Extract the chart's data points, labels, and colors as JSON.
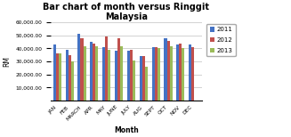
{
  "title": "Bar chart of month versus Ringgit\nMalaysia",
  "xlabel": "Month",
  "ylabel": "RM",
  "months": [
    "JAN",
    "FEB",
    "MARCH",
    "APR",
    "MAY",
    "JUNE",
    "JULY",
    "AUG",
    "SEPT",
    "OCT",
    "NOV",
    "DEC"
  ],
  "series": {
    "2011": [
      43000,
      39000,
      51000,
      45000,
      41000,
      38000,
      38000,
      34000,
      41000,
      48000,
      43000,
      43000
    ],
    "2012": [
      36000,
      35000,
      48000,
      44000,
      49000,
      48000,
      39000,
      34000,
      41000,
      46000,
      44000,
      41000
    ],
    "2013": [
      36000,
      30000,
      42000,
      42000,
      39000,
      42000,
      31000,
      26000,
      40000,
      42000,
      40000,
      0
    ]
  },
  "colors": {
    "2011": "#4472C4",
    "2012": "#C0504D",
    "2013": "#9BBB59"
  },
  "ylim": [
    0,
    60000
  ],
  "yticks": [
    10000,
    20000,
    30000,
    40000,
    50000,
    60000
  ],
  "legend_labels": [
    "2011",
    "2012",
    "2013"
  ],
  "background_color": "#FFFFFF",
  "grid_color": "#C0C0C0",
  "bar_width": 0.22,
  "title_fontsize": 7,
  "axis_label_fontsize": 5.5,
  "tick_fontsize": 4.2,
  "legend_fontsize": 5
}
